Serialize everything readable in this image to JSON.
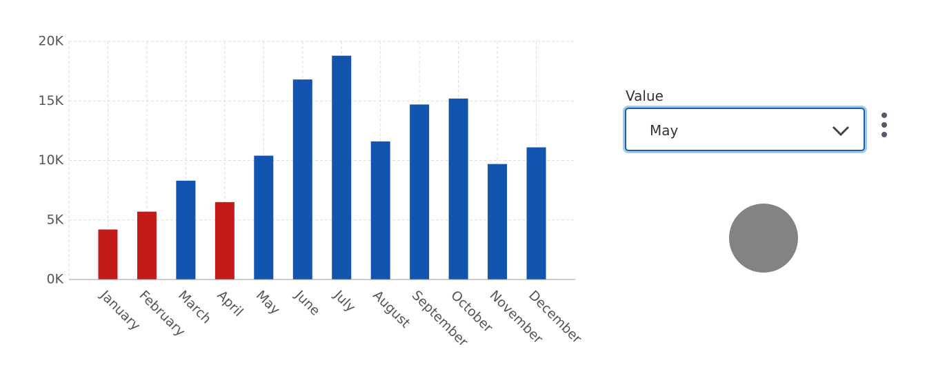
{
  "chart_data": {
    "type": "bar",
    "categories": [
      "January",
      "February",
      "March",
      "April",
      "May",
      "June",
      "July",
      "August",
      "September",
      "October",
      "November",
      "December"
    ],
    "values": [
      4200,
      5700,
      8300,
      6500,
      10400,
      16800,
      18800,
      11600,
      14700,
      15200,
      9700,
      11100
    ],
    "colors": [
      "#c41a1a",
      "#c41a1a",
      "#1155b0",
      "#c41a1a",
      "#1155b0",
      "#1155b0",
      "#1155b0",
      "#1155b0",
      "#1155b0",
      "#1155b0",
      "#1155b0",
      "#1155b0"
    ],
    "ylim": [
      0,
      20000
    ],
    "yticks": [
      {
        "value": 0,
        "label": "0K"
      },
      {
        "value": 5000,
        "label": "5K"
      },
      {
        "value": 10000,
        "label": "10K"
      },
      {
        "value": 15000,
        "label": "15K"
      },
      {
        "value": 20000,
        "label": "20K"
      }
    ],
    "grid": true
  },
  "controls": {
    "label": "Value",
    "selected": "May"
  }
}
